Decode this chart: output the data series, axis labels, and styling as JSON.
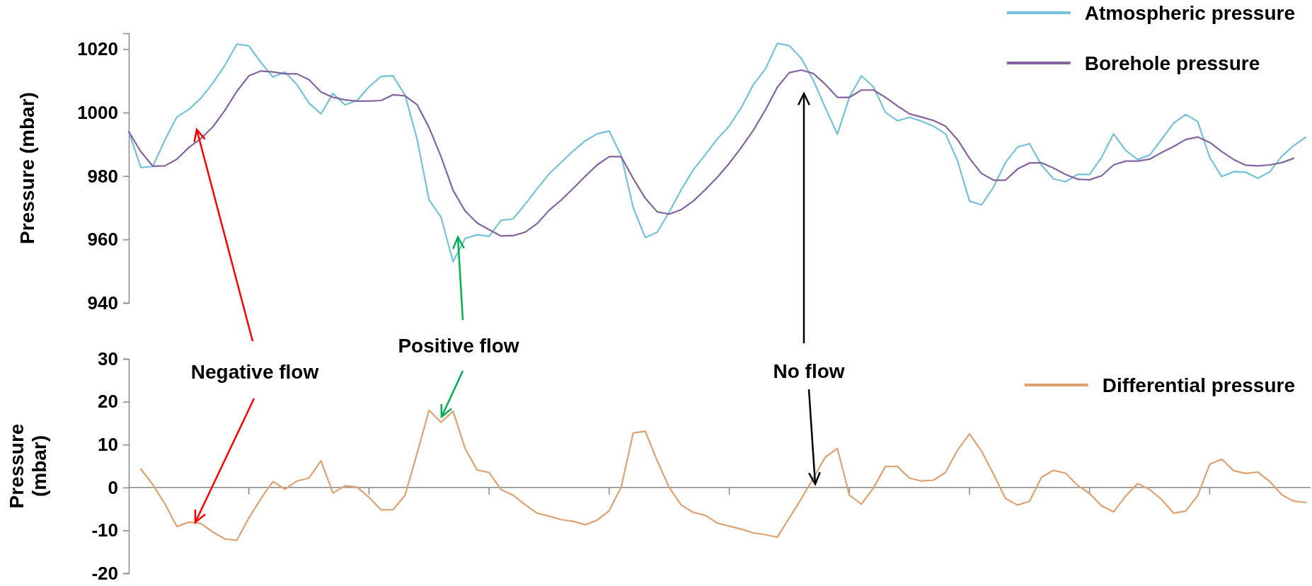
{
  "chart_data": [
    {
      "type": "line",
      "ylabel": "Pressure (mbar)",
      "categories": [
        null,
        null,
        null,
        null,
        null,
        null,
        null,
        null,
        null,
        null,
        null,
        null,
        null,
        null,
        null,
        null,
        null,
        null,
        null,
        null,
        null,
        null,
        null,
        null,
        null,
        null,
        null,
        null,
        null,
        null,
        null,
        null,
        null,
        null,
        null,
        null,
        null,
        null,
        null,
        null,
        null,
        null,
        null,
        null,
        null,
        null,
        null,
        null,
        null,
        null,
        null,
        null,
        null,
        null,
        null,
        null,
        null,
        null,
        null,
        null,
        null,
        null,
        null,
        null,
        null,
        null,
        null,
        null,
        null,
        null,
        null,
        null,
        null,
        null,
        null,
        null,
        null,
        null,
        null,
        null,
        null,
        null,
        null,
        null,
        null,
        null,
        null,
        null,
        null,
        null,
        null,
        null,
        null,
        null,
        null,
        null,
        null,
        null,
        null
      ],
      "ylim": [
        940,
        1025
      ],
      "yticks": [
        940,
        960,
        980,
        1000,
        1020
      ],
      "tick_labels": "y",
      "legend": "top right",
      "marker": "none",
      "line_style": "solid",
      "series": [
        {
          "name": "Atmospheric pressure",
          "color": "#73c2d8",
          "values": [
            994,
            982.7,
            983,
            991.3,
            998.6,
            1001,
            1004.5,
            1009.3,
            1014.9,
            1021.6,
            1021,
            1015.8,
            1011.2,
            1012.8,
            1008.8,
            1003,
            999.6,
            1006,
            1002.4,
            1003.8,
            1008.1,
            1011.4,
            1011.6,
            1005.5,
            991.7,
            972.5,
            967,
            953,
            960.3,
            961.5,
            961,
            966,
            966.5,
            971.1,
            976,
            980.7,
            984.3,
            987.9,
            991.1,
            993.3,
            994.2,
            986.4,
            970,
            960.6,
            962.3,
            968.6,
            975.7,
            981.9,
            986.7,
            991.7,
            995.8,
            1001.6,
            1008.8,
            1013.7,
            1021.8,
            1021.1,
            1017.1,
            1010.1,
            1001.5,
            993.2,
            1004.8,
            1011.6,
            1008.1,
            1000.1,
            997.4,
            998.5,
            997.3,
            995.7,
            993.3,
            984.9,
            972.1,
            970.9,
            976.5,
            984.3,
            989.1,
            990.2,
            983.4,
            979.1,
            978.2,
            980.5,
            980.5,
            985.9,
            993.3,
            988.1,
            985.2,
            986.6,
            991.6,
            996.7,
            999.4,
            997.2,
            985.9,
            979.8,
            981.4,
            981.2,
            979.3,
            981.3,
            986.2,
            989.6,
            992.2
          ]
        },
        {
          "name": "Borehole pressure",
          "color": "#84649f",
          "values": [
            994,
            987.7,
            983.1,
            983.2,
            985.3,
            989,
            991.8,
            995.5,
            1000.7,
            1006.7,
            1011.6,
            1013.1,
            1012.8,
            1012.2,
            1012.2,
            1010.4,
            1006.5,
            1004.8,
            1004,
            1003.6,
            1003.6,
            1003.8,
            1005.6,
            1005.3,
            1002.5,
            995.3,
            986.1,
            975.5,
            969,
            965.2,
            963.1,
            961.1,
            961.2,
            962.3,
            965,
            969.2,
            972.4,
            976.1,
            979.9,
            983.5,
            986.1,
            986.1,
            979.2,
            973,
            968.7,
            968,
            969.4,
            972.1,
            975.7,
            979.6,
            984,
            989,
            994.4,
            1000.8,
            1008,
            1012.6,
            1013.4,
            1012.3,
            1008.9,
            1004.8,
            1004.8,
            1007.1,
            1007.1,
            1004.8,
            1002.1,
            999.6,
            998.6,
            997.5,
            995.7,
            991.5,
            985.6,
            980.8,
            978.7,
            978.7,
            982.2,
            984.1,
            984.2,
            982.5,
            980.5,
            979,
            978.8,
            980.1,
            983.5,
            984.7,
            984.7,
            985.3,
            987.4,
            989.3,
            991.5,
            992.3,
            990.6,
            987.7,
            985.2,
            983.4,
            983.2,
            983.5,
            984.2,
            985.6,
            null
          ]
        }
      ]
    },
    {
      "type": "line",
      "ylabel": "Pressure (mbar)",
      "categories": [
        null,
        null,
        null,
        null,
        null,
        null,
        null,
        null,
        null,
        null,
        null,
        null,
        null,
        null,
        null,
        null,
        null,
        null,
        null,
        null,
        null,
        null,
        null,
        null,
        null,
        null,
        null,
        null,
        null,
        null,
        null,
        null,
        null,
        null,
        null,
        null,
        null,
        null,
        null,
        null,
        null,
        null,
        null,
        null,
        null,
        null,
        null,
        null,
        null,
        null,
        null,
        null,
        null,
        null,
        null,
        null,
        null,
        null,
        null,
        null,
        null,
        null,
        null,
        null,
        null,
        null,
        null,
        null,
        null,
        null,
        null,
        null,
        null,
        null,
        null,
        null,
        null,
        null,
        null,
        null,
        null,
        null,
        null,
        null,
        null,
        null,
        null,
        null,
        null,
        null,
        null,
        null,
        null,
        null,
        null,
        null,
        null,
        null,
        null
      ],
      "ylim": [
        -20,
        30
      ],
      "yticks": [
        -20,
        -10,
        0,
        10,
        20,
        30
      ],
      "tick_labels": "y",
      "legend": "top right",
      "marker": "none",
      "line_style": "solid",
      "annotations": [
        "Negative flow",
        "Positive flow",
        "No flow"
      ],
      "series": [
        {
          "name": "Differential pressure",
          "color": "#dea270",
          "values": [
            null,
            4.3,
            0.7,
            -3.8,
            -9.1,
            -8.1,
            -8.4,
            -10.4,
            -12,
            -12.3,
            -7.1,
            -2.6,
            1.4,
            -0.4,
            1.5,
            2.2,
            6.2,
            -1.3,
            0.4,
            0.1,
            -2.3,
            -5.2,
            -5.2,
            -1.8,
            7.9,
            18,
            15.2,
            17.8,
            9.1,
            4.1,
            3.5,
            -0.5,
            -1.8,
            -4,
            -6,
            -6.7,
            -7.5,
            -7.9,
            -8.7,
            -7.6,
            -5.4,
            0.1,
            12.7,
            13.1,
            6.2,
            0,
            -4.1,
            -5.8,
            -6.5,
            -8.3,
            -9,
            -9.7,
            -10.6,
            -11,
            -11.6,
            -7.1,
            -2.6,
            2.2,
            7.1,
            9.1,
            -1.8,
            -3.9,
            -0.1,
            4.9,
            4.9,
            2.2,
            1.5,
            1.7,
            3.5,
            8.7,
            12.5,
            8.5,
            3.1,
            -2.6,
            -4.1,
            -3.2,
            2.4,
            4,
            3.3,
            0.5,
            -1.4,
            -4.3,
            -5.7,
            -2,
            0.9,
            -0.5,
            -2.8,
            -6,
            -5.5,
            -1.9,
            5.4,
            6.6,
            3.9,
            3.3,
            3.6,
            1.4,
            -1.7,
            -3.2,
            -3.5
          ]
        }
      ]
    }
  ]
}
